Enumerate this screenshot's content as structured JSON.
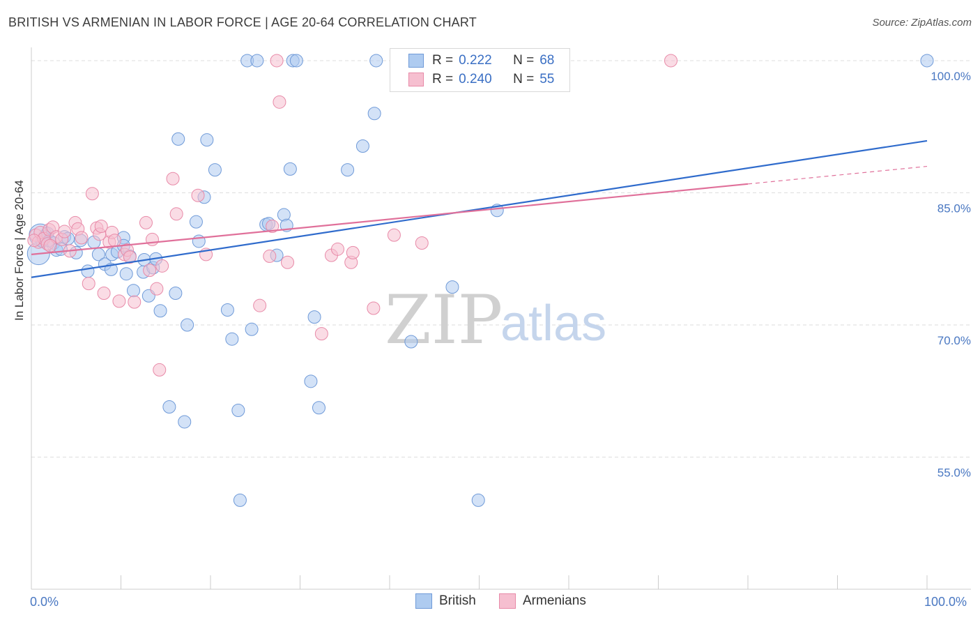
{
  "header": {
    "title": "BRITISH VS ARMENIAN IN LABOR FORCE | AGE 20-64 CORRELATION CHART",
    "source": "Source: ZipAtlas.com"
  },
  "watermark": {
    "zip": "ZIP",
    "atlas": "atlas"
  },
  "legend": {
    "british": {
      "r_label": "R =",
      "r_value": "0.222",
      "n_label": "N =",
      "n_value": "68"
    },
    "armenians": {
      "r_label": "R =",
      "r_value": "0.240",
      "n_label": "N =",
      "n_value": "55"
    }
  },
  "bottom_legend": {
    "british": "British",
    "armenians": "Armenians"
  },
  "colors": {
    "british_fill": "#aecbf0",
    "british_stroke": "#6f9ad8",
    "british_line": "#2f6bcc",
    "armenian_fill": "#f6bfd0",
    "armenian_stroke": "#e88aa8",
    "armenian_line": "#e0709a",
    "grid": "#dddddd",
    "tick_text": "#4a78c2"
  },
  "chart_data": {
    "type": "scatter",
    "title": "BRITISH VS ARMENIAN IN LABOR FORCE | AGE 20-64 CORRELATION CHART",
    "xlabel": "",
    "ylabel": "In Labor Force | Age 20-64",
    "xlim": [
      0,
      100
    ],
    "ylim": [
      40,
      101.5
    ],
    "x_tick_labels": [
      "0.0%",
      "100.0%"
    ],
    "y_ticks": [
      55,
      70,
      85,
      100
    ],
    "y_tick_labels": [
      "55.0%",
      "70.0%",
      "85.0%",
      "100.0%"
    ],
    "grid": true,
    "legend_position": "top-center",
    "series": [
      {
        "name": "British",
        "r": 0.222,
        "n": 68,
        "trend": {
          "x": [
            0,
            100
          ],
          "y": [
            75.4,
            90.9
          ],
          "dashed_from": null
        },
        "points": [
          [
            0.8,
            78.1
          ],
          [
            1.0,
            80.2
          ],
          [
            1.2,
            79.5
          ],
          [
            1.5,
            80.0
          ],
          [
            1.8,
            80.4
          ],
          [
            2.0,
            79.6
          ],
          [
            2.5,
            79.3
          ],
          [
            2.8,
            78.5
          ],
          [
            3.3,
            78.6
          ],
          [
            3.7,
            80.0
          ],
          [
            4.1,
            79.8
          ],
          [
            5.0,
            78.2
          ],
          [
            5.5,
            79.6
          ],
          [
            6.3,
            76.1
          ],
          [
            7.0,
            79.4
          ],
          [
            7.5,
            78.0
          ],
          [
            8.2,
            76.9
          ],
          [
            9.0,
            78.0
          ],
          [
            8.9,
            76.3
          ],
          [
            9.6,
            78.3
          ],
          [
            10.3,
            79.9
          ],
          [
            10.3,
            79.0
          ],
          [
            10.6,
            75.8
          ],
          [
            11.0,
            77.8
          ],
          [
            11.4,
            73.9
          ],
          [
            12.5,
            76.0
          ],
          [
            12.6,
            77.4
          ],
          [
            13.1,
            73.3
          ],
          [
            13.6,
            76.5
          ],
          [
            13.9,
            77.5
          ],
          [
            14.4,
            71.6
          ],
          [
            15.4,
            60.7
          ],
          [
            16.1,
            73.6
          ],
          [
            17.1,
            59.0
          ],
          [
            16.4,
            91.1
          ],
          [
            17.4,
            70.0
          ],
          [
            18.4,
            81.7
          ],
          [
            18.7,
            79.5
          ],
          [
            19.3,
            84.5
          ],
          [
            19.6,
            91.0
          ],
          [
            20.5,
            87.6
          ],
          [
            21.9,
            71.7
          ],
          [
            22.4,
            68.4
          ],
          [
            23.1,
            60.3
          ],
          [
            23.3,
            50.1
          ],
          [
            24.1,
            100.0
          ],
          [
            24.6,
            69.5
          ],
          [
            25.2,
            100.0
          ],
          [
            26.2,
            81.4
          ],
          [
            26.5,
            81.5
          ],
          [
            27.4,
            77.9
          ],
          [
            28.2,
            82.5
          ],
          [
            28.5,
            81.3
          ],
          [
            28.9,
            87.7
          ],
          [
            29.2,
            100.0
          ],
          [
            29.6,
            100.0
          ],
          [
            31.2,
            63.6
          ],
          [
            31.6,
            70.9
          ],
          [
            32.1,
            60.6
          ],
          [
            35.3,
            87.6
          ],
          [
            37.0,
            90.3
          ],
          [
            38.3,
            94.0
          ],
          [
            38.5,
            100.0
          ],
          [
            42.4,
            68.1
          ],
          [
            47.0,
            74.3
          ],
          [
            49.9,
            50.1
          ],
          [
            52.0,
            83.0
          ],
          [
            100.0,
            100.0
          ]
        ]
      },
      {
        "name": "Armenians",
        "r": 0.24,
        "n": 55,
        "trend": {
          "x": [
            0,
            100
          ],
          "y": [
            78.0,
            88.0
          ],
          "dashed_from": 80
        },
        "points": [
          [
            0.5,
            80.2
          ],
          [
            0.8,
            79.4
          ],
          [
            1.0,
            80.5
          ],
          [
            1.4,
            79.8
          ],
          [
            1.8,
            79.2
          ],
          [
            2.0,
            80.8
          ],
          [
            2.4,
            81.1
          ],
          [
            2.8,
            80.0
          ],
          [
            3.4,
            79.7
          ],
          [
            3.7,
            80.6
          ],
          [
            4.3,
            78.4
          ],
          [
            4.9,
            81.6
          ],
          [
            5.2,
            80.9
          ],
          [
            5.6,
            79.9
          ],
          [
            6.4,
            74.7
          ],
          [
            6.8,
            84.9
          ],
          [
            7.3,
            81.0
          ],
          [
            7.6,
            80.3
          ],
          [
            7.8,
            81.2
          ],
          [
            8.1,
            73.6
          ],
          [
            8.7,
            79.4
          ],
          [
            9.0,
            80.5
          ],
          [
            9.3,
            79.6
          ],
          [
            9.8,
            72.7
          ],
          [
            10.4,
            78.0
          ],
          [
            10.7,
            78.5
          ],
          [
            11.0,
            77.7
          ],
          [
            11.5,
            72.6
          ],
          [
            12.8,
            81.6
          ],
          [
            13.2,
            76.2
          ],
          [
            13.5,
            79.7
          ],
          [
            14.0,
            74.1
          ],
          [
            14.3,
            64.9
          ],
          [
            14.6,
            76.7
          ],
          [
            15.8,
            86.6
          ],
          [
            16.2,
            82.6
          ],
          [
            18.6,
            84.7
          ],
          [
            19.5,
            78.0
          ],
          [
            25.5,
            72.2
          ],
          [
            26.6,
            77.8
          ],
          [
            26.9,
            81.2
          ],
          [
            27.4,
            100.0
          ],
          [
            27.7,
            95.3
          ],
          [
            28.6,
            77.1
          ],
          [
            32.4,
            69.0
          ],
          [
            33.5,
            77.9
          ],
          [
            34.2,
            78.6
          ],
          [
            35.7,
            77.1
          ],
          [
            35.9,
            78.2
          ],
          [
            38.2,
            71.9
          ],
          [
            40.5,
            80.2
          ],
          [
            43.6,
            79.3
          ],
          [
            71.4,
            100.0
          ],
          [
            0.3,
            79.6
          ],
          [
            2.1,
            79.0
          ]
        ]
      }
    ]
  }
}
